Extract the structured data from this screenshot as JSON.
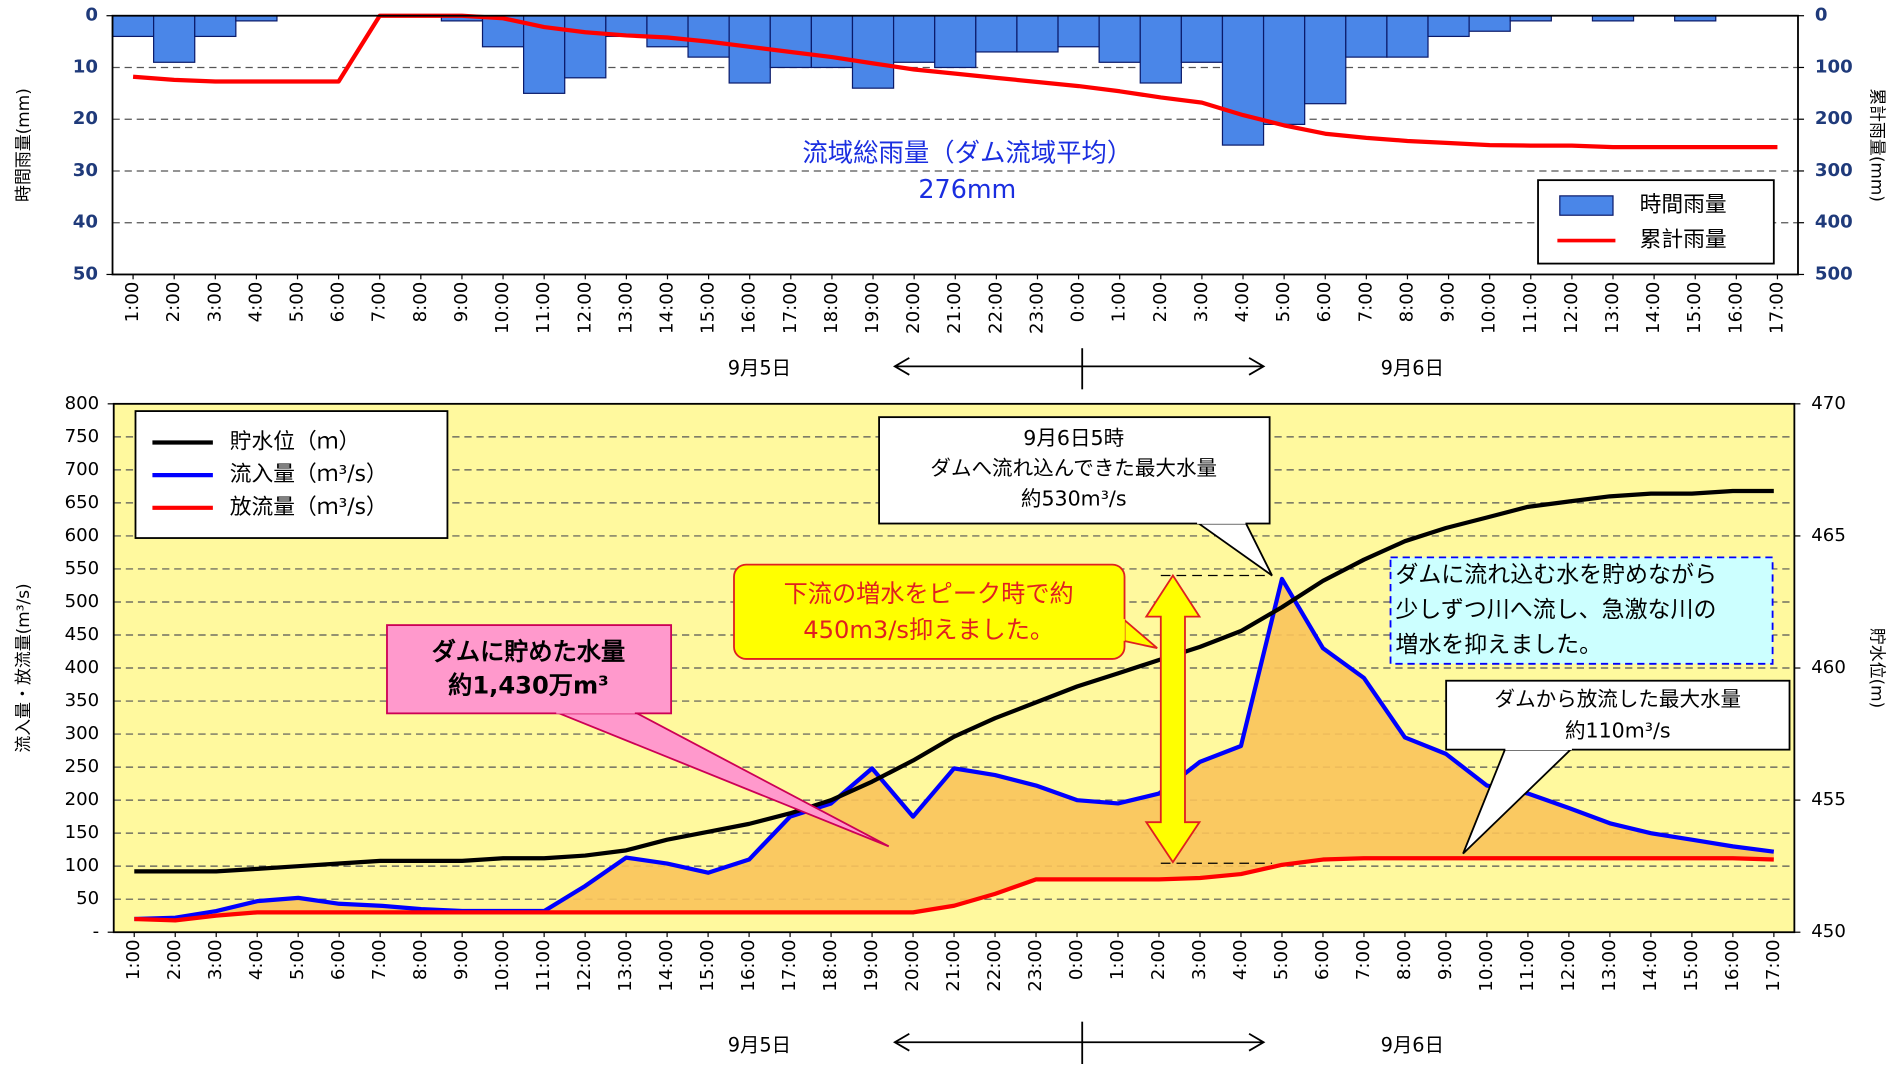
{
  "chart_data": [
    {
      "type": "bar",
      "categories": [
        "1:00",
        "2:00",
        "3:00",
        "4:00",
        "5:00",
        "6:00",
        "7:00",
        "8:00",
        "9:00",
        "10:00",
        "11:00",
        "12:00",
        "13:00",
        "14:00",
        "15:00",
        "16:00",
        "17:00",
        "18:00",
        "19:00",
        "20:00",
        "21:00",
        "22:00",
        "23:00",
        "0:00",
        "1:00",
        "2:00",
        "3:00",
        "4:00",
        "5:00",
        "6:00",
        "7:00",
        "8:00",
        "9:00",
        "10:00",
        "11:00",
        "12:00",
        "13:00",
        "14:00",
        "15:00",
        "16:00",
        "17:00"
      ],
      "series": [
        {
          "name": "時間雨量",
          "color": "#4a86e8",
          "values": [
            4,
            9,
            4,
            1,
            0,
            0,
            0,
            0,
            1,
            6,
            15,
            12,
            4,
            6,
            8,
            13,
            10,
            10,
            14,
            9,
            10,
            7,
            7,
            6,
            9,
            13,
            9,
            25,
            21,
            17,
            8,
            8,
            4,
            3,
            1,
            0,
            1,
            0,
            1,
            0,
            0
          ]
        },
        {
          "name": "累計雨量",
          "color": "#ff0000",
          "axis": "y2",
          "values": [
            118,
            124,
            127,
            127,
            127,
            127,
            0,
            0,
            0,
            5,
            22,
            32,
            38,
            42,
            50,
            60,
            70,
            80,
            92,
            104,
            112,
            120,
            128,
            136,
            146,
            158,
            168,
            192,
            212,
            228,
            236,
            242,
            246,
            250,
            251,
            251,
            254,
            254,
            254,
            254,
            254
          ]
        }
      ],
      "ylabel": "時間雨量(mm)",
      "y2label": "累計雨量(mm)",
      "ylim": [
        0,
        50
      ],
      "yticks": [
        0,
        10,
        20,
        30,
        40,
        50
      ],
      "y2lim": [
        0,
        500
      ],
      "y2ticks": [
        0,
        100,
        200,
        300,
        400,
        500
      ],
      "yreverse": true,
      "grid": true,
      "legend": "bottom-right",
      "annotation": [
        "流域総雨量（ダム流域平均）",
        "276mm"
      ],
      "date_labels": [
        "9月5日",
        "9月6日"
      ]
    },
    {
      "type": "line",
      "categories": [
        "1:00",
        "2:00",
        "3:00",
        "4:00",
        "5:00",
        "6:00",
        "7:00",
        "8:00",
        "9:00",
        "10:00",
        "11:00",
        "12:00",
        "13:00",
        "14:00",
        "15:00",
        "16:00",
        "17:00",
        "18:00",
        "19:00",
        "20:00",
        "21:00",
        "22:00",
        "23:00",
        "0:00",
        "1:00",
        "2:00",
        "3:00",
        "4:00",
        "5:00",
        "6:00",
        "7:00",
        "8:00",
        "9:00",
        "10:00",
        "11:00",
        "12:00",
        "13:00",
        "14:00",
        "15:00",
        "16:00",
        "17:00"
      ],
      "series": [
        {
          "name": "貯水位（ｍ）",
          "color": "#000000",
          "axis": "y2",
          "values": [
            452.3,
            452.3,
            452.3,
            452.4,
            452.5,
            452.6,
            452.7,
            452.7,
            452.7,
            452.8,
            452.8,
            452.9,
            453.1,
            453.5,
            453.8,
            454.1,
            454.5,
            455.0,
            455.7,
            456.5,
            457.4,
            458.1,
            458.7,
            459.3,
            459.8,
            460.3,
            460.8,
            461.4,
            462.3,
            463.3,
            464.1,
            464.8,
            465.3,
            465.7,
            466.1,
            466.3,
            466.5,
            466.6,
            466.6,
            466.7,
            466.7
          ]
        },
        {
          "name": "流入量（ｍ³/s）",
          "color": "#0000ff",
          "values": [
            20,
            22,
            32,
            47,
            52,
            43,
            40,
            35,
            32,
            32,
            32,
            70,
            113,
            104,
            90,
            110,
            175,
            195,
            248,
            175,
            248,
            238,
            222,
            200,
            195,
            210,
            258,
            282,
            535,
            430,
            385,
            295,
            270,
            222,
            210,
            188,
            165,
            150,
            140,
            130,
            122
          ]
        },
        {
          "name": "放流量（ｍ³/s）",
          "color": "#ff0000",
          "values": [
            20,
            18,
            25,
            30,
            30,
            30,
            30,
            30,
            30,
            30,
            30,
            30,
            30,
            30,
            30,
            30,
            30,
            30,
            30,
            30,
            40,
            58,
            80,
            80,
            80,
            80,
            82,
            88,
            102,
            110,
            112,
            112,
            112,
            112,
            112,
            112,
            112,
            112,
            112,
            112,
            110
          ]
        }
      ],
      "ylabel": "流入量・放流量(m³/s)",
      "y2label": "貯水位(m)",
      "ylim": [
        0,
        800
      ],
      "yticks": [
        {
          "value": 0,
          "label": "-"
        },
        50,
        100,
        150,
        200,
        250,
        300,
        350,
        400,
        450,
        500,
        550,
        600,
        650,
        700,
        750,
        800
      ],
      "y2lim": [
        450,
        470
      ],
      "y2ticks": [
        450,
        455,
        460,
        465,
        470
      ],
      "grid": true,
      "legend": "top-left",
      "background": "#fff99e",
      "annotations": [
        {
          "lines": [
            "9月6日5時",
            "ダムへ流れ込んできた最大水量",
            "約530m³/s"
          ]
        },
        {
          "lines": [
            "ダムに貯めた水量",
            "約1,430万m³"
          ]
        },
        {
          "lines": [
            "下流の増水をピーク時で約",
            "450m3/s抑えました。"
          ]
        },
        {
          "lines": [
            "ダムに流れ込む水を貯めながら",
            "少しずつ川へ流し、急激な川の",
            "増水を抑えました。"
          ]
        },
        {
          "lines": [
            "ダムから放流した最大水量",
            "約110m³/s"
          ]
        }
      ],
      "date_labels": [
        "9月5日",
        "9月6日"
      ]
    }
  ]
}
